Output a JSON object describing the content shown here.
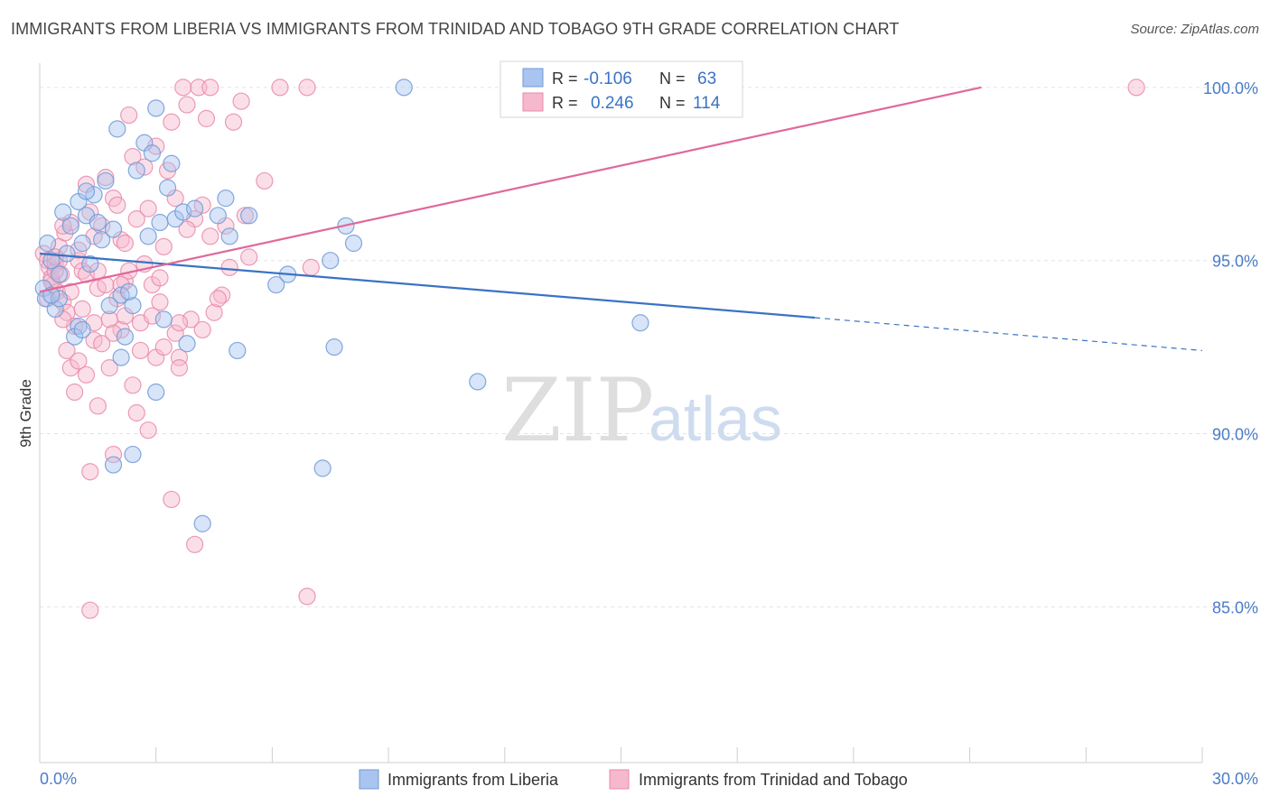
{
  "header": {
    "title": "IMMIGRANTS FROM LIBERIA VS IMMIGRANTS FROM TRINIDAD AND TOBAGO 9TH GRADE CORRELATION CHART",
    "source": "Source: ZipAtlas.com"
  },
  "watermark": {
    "zip": "ZIP",
    "atlas": "atlas"
  },
  "colors": {
    "blue_fill": "#a9c4ee",
    "blue_stroke": "#6d9ad8",
    "blue_line": "#3a73c4",
    "pink_fill": "#f6b8cc",
    "pink_stroke": "#e98aa9",
    "pink_line": "#e0689a",
    "grid": "#e3e3e3",
    "tick_text": "#4a7cc7"
  },
  "legend": {
    "r_label": "R =",
    "n_label": "N =",
    "rows": [
      {
        "series": "liberia",
        "r": "-0.106",
        "n": "63"
      },
      {
        "series": "trinidad",
        "r": "0.246",
        "n": "114"
      }
    ]
  },
  "chart_data": {
    "type": "scatter",
    "title": "IMMIGRANTS FROM LIBERIA VS IMMIGRANTS FROM TRINIDAD AND TOBAGO 9TH GRADE CORRELATION CHART",
    "xlabel": "",
    "ylabel": "9th Grade",
    "xlim": [
      0,
      30
    ],
    "ylim": [
      80.5,
      100.7
    ],
    "x_tick_labels": [
      "0.0%",
      "30.0%"
    ],
    "y_ticks": [
      {
        "value": 100,
        "label": "100.0%"
      },
      {
        "value": 95,
        "label": "95.0%"
      },
      {
        "value": 90,
        "label": "90.0%"
      },
      {
        "value": 85,
        "label": "85.0%"
      }
    ],
    "grid": true,
    "legend_position": "top-center",
    "series": [
      {
        "name": "Immigrants from Liberia",
        "key": "liberia",
        "trend": {
          "x0": 0.0,
          "y0": 95.2,
          "x1": 20.0,
          "y1": 93.35,
          "x_dash_end": 30.0,
          "y_dash_end": 92.4
        },
        "points": [
          [
            0.2,
            95.5
          ],
          [
            0.1,
            94.2
          ],
          [
            0.15,
            93.9
          ],
          [
            0.3,
            95.0
          ],
          [
            0.5,
            94.6
          ],
          [
            0.4,
            93.6
          ],
          [
            0.7,
            95.2
          ],
          [
            0.8,
            96.0
          ],
          [
            0.6,
            96.4
          ],
          [
            1.0,
            96.7
          ],
          [
            1.2,
            96.3
          ],
          [
            1.4,
            96.9
          ],
          [
            1.1,
            95.5
          ],
          [
            1.5,
            96.1
          ],
          [
            1.3,
            94.9
          ],
          [
            1.6,
            95.6
          ],
          [
            1.9,
            95.9
          ],
          [
            2.0,
            98.8
          ],
          [
            2.1,
            94.0
          ],
          [
            1.8,
            93.7
          ],
          [
            2.4,
            93.7
          ],
          [
            2.3,
            94.1
          ],
          [
            2.5,
            97.6
          ],
          [
            2.7,
            98.4
          ],
          [
            2.9,
            98.1
          ],
          [
            2.8,
            95.7
          ],
          [
            3.1,
            96.1
          ],
          [
            3.2,
            93.3
          ],
          [
            3.3,
            97.1
          ],
          [
            3.4,
            97.8
          ],
          [
            3.5,
            96.2
          ],
          [
            3.0,
            99.4
          ],
          [
            3.7,
            96.4
          ],
          [
            3.8,
            92.6
          ],
          [
            4.0,
            96.5
          ],
          [
            4.6,
            96.3
          ],
          [
            4.8,
            96.8
          ],
          [
            4.9,
            95.7
          ],
          [
            5.1,
            92.4
          ],
          [
            5.4,
            96.3
          ],
          [
            6.1,
            94.3
          ],
          [
            6.4,
            94.6
          ],
          [
            7.5,
            95.0
          ],
          [
            7.6,
            92.5
          ],
          [
            7.9,
            96.0
          ],
          [
            8.1,
            95.5
          ],
          [
            9.4,
            100.0
          ],
          [
            11.3,
            91.5
          ],
          [
            15.5,
            93.2
          ],
          [
            2.2,
            92.8
          ],
          [
            1.0,
            93.1
          ],
          [
            2.1,
            92.2
          ],
          [
            0.9,
            92.8
          ],
          [
            1.1,
            93.0
          ],
          [
            0.5,
            93.9
          ],
          [
            2.4,
            89.4
          ],
          [
            1.9,
            89.1
          ],
          [
            3.0,
            91.2
          ],
          [
            7.3,
            89.0
          ],
          [
            4.2,
            87.4
          ],
          [
            1.7,
            97.3
          ],
          [
            1.2,
            97.0
          ],
          [
            0.3,
            94.0
          ]
        ]
      },
      {
        "name": "Immigrants from Trinidad and Tobago",
        "key": "trinidad",
        "trend": {
          "x0": 0.0,
          "y0": 94.1,
          "x1": 24.3,
          "y1": 100.0
        },
        "points": [
          [
            0.1,
            95.2
          ],
          [
            0.2,
            95.0
          ],
          [
            0.25,
            94.8
          ],
          [
            0.3,
            94.5
          ],
          [
            0.35,
            94.3
          ],
          [
            0.4,
            94.9
          ],
          [
            0.45,
            94.1
          ],
          [
            0.5,
            95.4
          ],
          [
            0.55,
            94.6
          ],
          [
            0.6,
            93.8
          ],
          [
            0.65,
            95.8
          ],
          [
            0.7,
            93.5
          ],
          [
            0.8,
            96.1
          ],
          [
            0.9,
            93.1
          ],
          [
            1.0,
            95.0
          ],
          [
            1.1,
            94.7
          ],
          [
            1.2,
            97.2
          ],
          [
            1.3,
            96.4
          ],
          [
            1.4,
            95.7
          ],
          [
            1.5,
            94.2
          ],
          [
            1.6,
            96.0
          ],
          [
            1.7,
            97.4
          ],
          [
            1.8,
            93.3
          ],
          [
            1.9,
            96.8
          ],
          [
            2.0,
            96.6
          ],
          [
            2.1,
            95.6
          ],
          [
            2.2,
            94.4
          ],
          [
            2.3,
            99.2
          ],
          [
            2.4,
            98.0
          ],
          [
            2.5,
            96.2
          ],
          [
            2.6,
            93.2
          ],
          [
            2.7,
            97.7
          ],
          [
            2.8,
            96.5
          ],
          [
            2.9,
            94.3
          ],
          [
            3.0,
            98.3
          ],
          [
            3.1,
            93.8
          ],
          [
            3.2,
            95.4
          ],
          [
            3.3,
            97.6
          ],
          [
            3.4,
            99.0
          ],
          [
            3.5,
            96.8
          ],
          [
            3.6,
            92.2
          ],
          [
            3.7,
            100.0
          ],
          [
            3.8,
            99.5
          ],
          [
            3.9,
            93.3
          ],
          [
            4.0,
            96.2
          ],
          [
            4.1,
            100.0
          ],
          [
            4.2,
            96.6
          ],
          [
            4.3,
            99.1
          ],
          [
            4.4,
            100.0
          ],
          [
            4.5,
            93.5
          ],
          [
            4.7,
            94.0
          ],
          [
            4.8,
            96.0
          ],
          [
            5.0,
            99.0
          ],
          [
            5.2,
            99.6
          ],
          [
            5.4,
            95.1
          ],
          [
            5.8,
            97.3
          ],
          [
            6.2,
            100.0
          ],
          [
            6.9,
            100.0
          ],
          [
            7.0,
            94.8
          ],
          [
            0.7,
            92.4
          ],
          [
            0.8,
            91.9
          ],
          [
            0.9,
            91.2
          ],
          [
            1.0,
            92.1
          ],
          [
            1.2,
            91.7
          ],
          [
            1.4,
            92.7
          ],
          [
            1.5,
            90.8
          ],
          [
            1.6,
            92.6
          ],
          [
            1.8,
            91.9
          ],
          [
            1.9,
            89.4
          ],
          [
            2.0,
            93.9
          ],
          [
            2.1,
            93.0
          ],
          [
            2.2,
            95.5
          ],
          [
            2.4,
            91.4
          ],
          [
            2.5,
            90.6
          ],
          [
            2.6,
            92.4
          ],
          [
            2.8,
            90.1
          ],
          [
            3.0,
            92.2
          ],
          [
            3.2,
            92.5
          ],
          [
            3.4,
            88.1
          ],
          [
            3.6,
            91.9
          ],
          [
            4.0,
            86.8
          ],
          [
            4.2,
            93.0
          ],
          [
            4.4,
            95.7
          ],
          [
            1.3,
            88.9
          ],
          [
            1.3,
            84.9
          ],
          [
            6.9,
            85.3
          ],
          [
            1.2,
            94.6
          ],
          [
            0.3,
            94.4
          ],
          [
            0.5,
            95.0
          ],
          [
            0.6,
            96.0
          ],
          [
            1.7,
            94.3
          ],
          [
            2.3,
            94.7
          ],
          [
            2.9,
            93.4
          ],
          [
            3.5,
            92.9
          ],
          [
            1.1,
            93.6
          ],
          [
            0.2,
            93.9
          ],
          [
            0.4,
            94.7
          ],
          [
            1.0,
            95.3
          ],
          [
            2.7,
            94.9
          ],
          [
            3.8,
            95.9
          ],
          [
            4.6,
            93.9
          ],
          [
            5.3,
            96.3
          ],
          [
            0.6,
            93.3
          ],
          [
            1.4,
            93.2
          ],
          [
            1.9,
            92.9
          ],
          [
            2.2,
            93.4
          ],
          [
            0.4,
            95.1
          ],
          [
            0.8,
            94.1
          ],
          [
            1.5,
            94.7
          ],
          [
            2.1,
            94.3
          ],
          [
            3.1,
            94.5
          ],
          [
            3.6,
            93.2
          ],
          [
            4.9,
            94.8
          ],
          [
            28.3,
            100.0
          ]
        ]
      }
    ]
  }
}
